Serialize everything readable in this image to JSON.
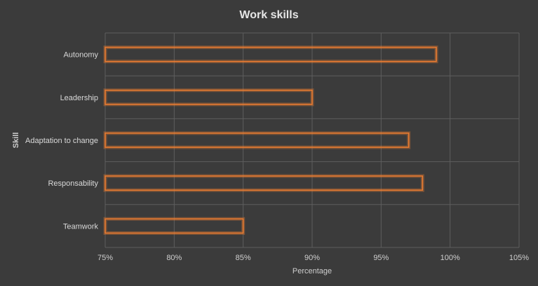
{
  "chart_data": {
    "type": "bar",
    "orientation": "horizontal",
    "title": "Work skills",
    "xlabel": "Percentage",
    "ylabel": "Skill",
    "categories": [
      "Autonomy",
      "Leadership",
      "Adaptation to change",
      "Responsability",
      "Teamwork"
    ],
    "values": [
      99,
      90,
      97,
      98,
      85
    ],
    "xlim": [
      75,
      105
    ],
    "x_ticks": [
      "75%",
      "80%",
      "85%",
      "90%",
      "95%",
      "100%",
      "105%"
    ],
    "grid": true,
    "bar_color": "#ed7d31",
    "bar_style": "outline-glow",
    "background": "#3b3b3b"
  }
}
